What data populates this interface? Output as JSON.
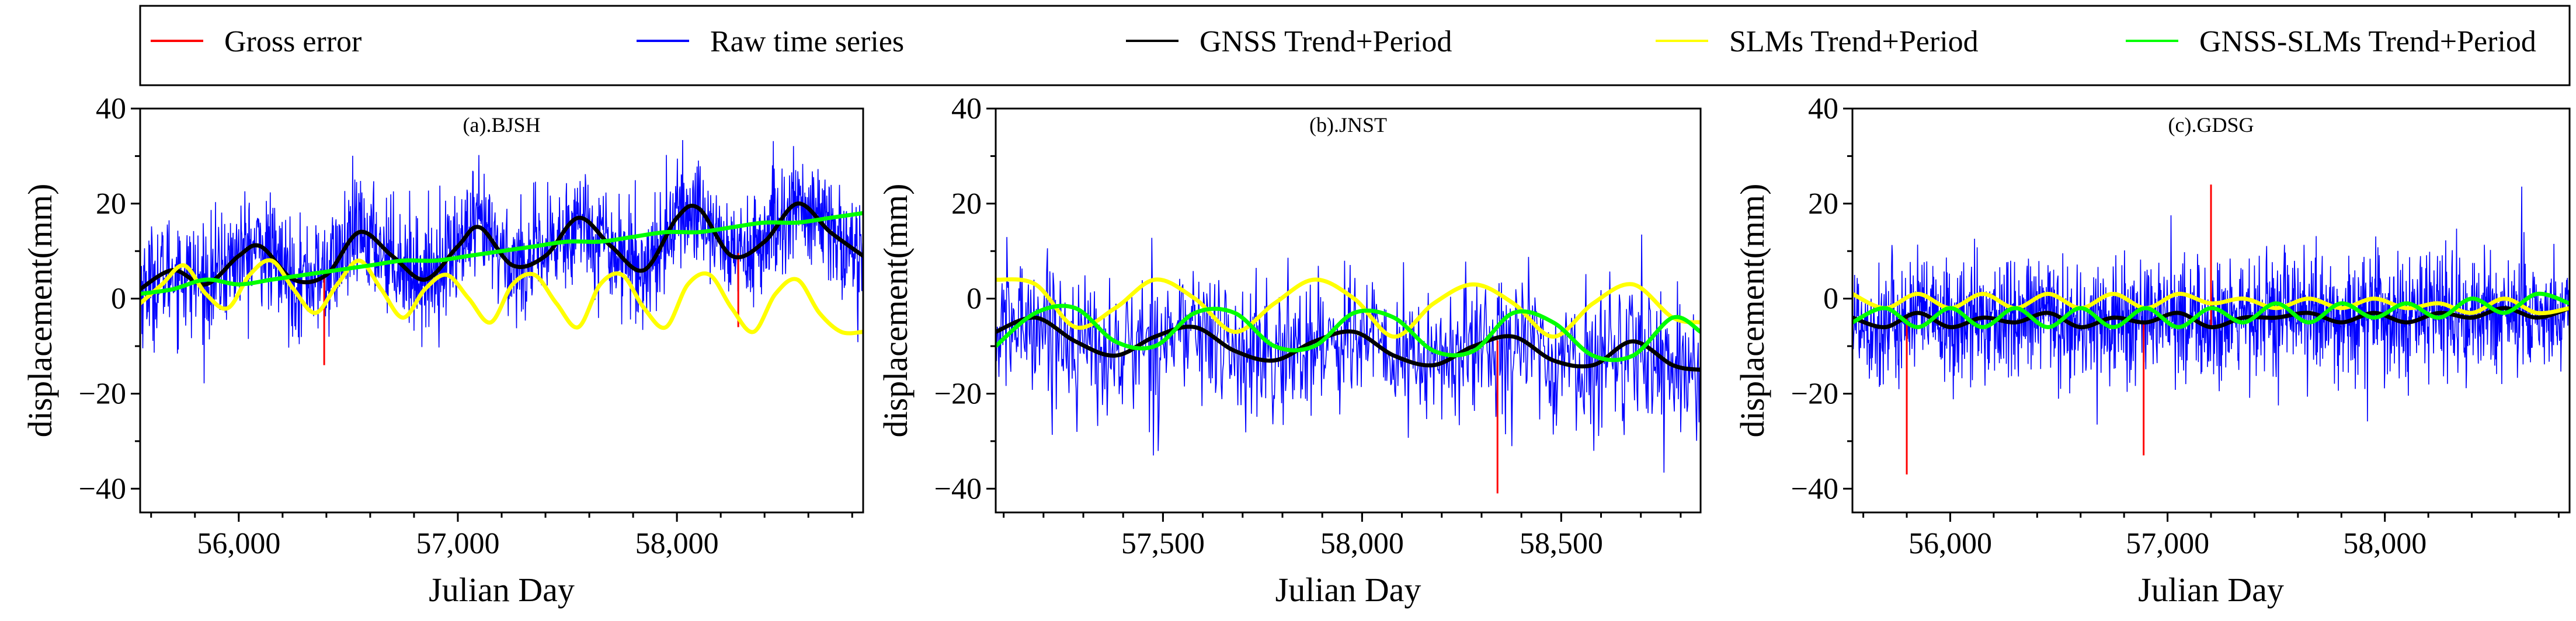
{
  "legend": {
    "items": [
      {
        "key": "gross",
        "label": "Gross error",
        "color": "#ff0000"
      },
      {
        "key": "raw",
        "label": "Raw time series",
        "color": "#0000ff"
      },
      {
        "key": "gnss",
        "label": "GNSS Trend+Period",
        "color": "#000000"
      },
      {
        "key": "slm",
        "label": "SLMs Trend+Period",
        "color": "#ffff00"
      },
      {
        "key": "diff",
        "label": "GNSS-SLMs Trend+Period",
        "color": "#00ff00"
      }
    ]
  },
  "chart_data": [
    {
      "type": "line",
      "title": "(a).BJSH",
      "xlabel": "Julian Day",
      "ylabel": "displacement(mm)",
      "xlim": [
        55550,
        58850
      ],
      "ylim": [
        -45,
        40
      ],
      "xticks": [
        56000,
        57000,
        58000
      ],
      "xtick_labels": [
        "56,000",
        "57,000",
        "58,000"
      ],
      "yticks": [
        -40,
        -20,
        0,
        20,
        40
      ],
      "ytick_labels": [
        "−40",
        "−20",
        "0",
        "20",
        "40"
      ],
      "series": [
        {
          "name": "GNSS Trend+Period",
          "x": [
            55550,
            55700,
            55850,
            56000,
            56100,
            56250,
            56400,
            56550,
            56700,
            56850,
            57000,
            57100,
            57250,
            57400,
            57550,
            57700,
            57850,
            58000,
            58100,
            58250,
            58400,
            58550,
            58700,
            58850
          ],
          "values": [
            2,
            6,
            3,
            9,
            11,
            4,
            5,
            14,
            9,
            4,
            11,
            15,
            7,
            9,
            17,
            11,
            6,
            17,
            19,
            9,
            12,
            20,
            14,
            9
          ]
        },
        {
          "name": "SLMs Trend+Period",
          "x": [
            55550,
            55650,
            55750,
            55850,
            55950,
            56050,
            56150,
            56250,
            56350,
            56450,
            56550,
            56650,
            56750,
            56850,
            56950,
            57050,
            57150,
            57250,
            57350,
            57450,
            57550,
            57650,
            57750,
            57850,
            57950,
            58050,
            58150,
            58250,
            58350,
            58450,
            58550,
            58650,
            58750,
            58850
          ],
          "values": [
            -1,
            3,
            7,
            1,
            -2,
            5,
            8,
            2,
            -3,
            3,
            8,
            2,
            -4,
            2,
            5,
            0,
            -5,
            3,
            5,
            -1,
            -6,
            3,
            5,
            -2,
            -6,
            3,
            5,
            -2,
            -7,
            1,
            4,
            -3,
            -7,
            -7
          ]
        },
        {
          "name": "GNSS-SLMs Trend+Period",
          "x": [
            55550,
            55700,
            55850,
            56000,
            56150,
            56300,
            56450,
            56600,
            56750,
            56900,
            57050,
            57200,
            57350,
            57500,
            57650,
            57800,
            57950,
            58100,
            58250,
            58400,
            58550,
            58700,
            58850
          ],
          "values": [
            1,
            2,
            4,
            3,
            4,
            5,
            6,
            7,
            8,
            8,
            9,
            10,
            11,
            12,
            12,
            13,
            14,
            14,
            15,
            16,
            16,
            17,
            18
          ]
        },
        {
          "name": "Gross error",
          "x": [
            56390,
            58280
          ],
          "values": [
            -14,
            -6
          ]
        }
      ]
    },
    {
      "type": "line",
      "title": "(b).JNST",
      "xlabel": "Julian Day",
      "ylabel": "displacement(mm)",
      "xlim": [
        57080,
        58850
      ],
      "ylim": [
        -45,
        40
      ],
      "xticks": [
        57500,
        58000,
        58500
      ],
      "xtick_labels": [
        "57,500",
        "58,000",
        "58,500"
      ],
      "yticks": [
        -40,
        -20,
        0,
        20,
        40
      ],
      "ytick_labels": [
        "−40",
        "−20",
        "0",
        "20",
        "40"
      ],
      "series": [
        {
          "name": "GNSS Trend+Period",
          "x": [
            57080,
            57180,
            57280,
            57380,
            57480,
            57580,
            57680,
            57780,
            57880,
            57980,
            58080,
            58180,
            58280,
            58380,
            58480,
            58580,
            58680,
            58780,
            58850
          ],
          "values": [
            -7,
            -4,
            -9,
            -12,
            -8,
            -6,
            -11,
            -13,
            -9,
            -7,
            -12,
            -14,
            -10,
            -8,
            -13,
            -14,
            -9,
            -14,
            -15
          ]
        },
        {
          "name": "SLMs Trend+Period",
          "x": [
            57080,
            57180,
            57280,
            57380,
            57480,
            57580,
            57680,
            57780,
            57880,
            57980,
            58080,
            58180,
            58280,
            58380,
            58480,
            58580,
            58680,
            58780,
            58850
          ],
          "values": [
            4,
            3,
            -6,
            -2,
            4,
            0,
            -7,
            -1,
            4,
            0,
            -8,
            -1,
            3,
            -1,
            -8,
            -1,
            3,
            -4,
            -5
          ]
        },
        {
          "name": "GNSS-SLMs Trend+Period",
          "x": [
            57080,
            57180,
            57280,
            57380,
            57480,
            57580,
            57680,
            57780,
            57880,
            57980,
            58080,
            58180,
            58280,
            58380,
            58480,
            58580,
            58680,
            58780,
            58850
          ],
          "values": [
            -10,
            -3,
            -2,
            -9,
            -10,
            -3,
            -3,
            -10,
            -10,
            -3,
            -4,
            -11,
            -11,
            -3,
            -5,
            -12,
            -12,
            -4,
            -7
          ]
        },
        {
          "name": "Gross error",
          "x": [
            58340
          ],
          "values": [
            -41
          ]
        }
      ]
    },
    {
      "type": "line",
      "title": "(c).GDSG",
      "xlabel": "Julian Day",
      "ylabel": "displacement(mm)",
      "xlim": [
        55550,
        58850
      ],
      "ylim": [
        -45,
        40
      ],
      "xticks": [
        56000,
        57000,
        58000
      ],
      "xtick_labels": [
        "56,000",
        "57,000",
        "58,000"
      ],
      "yticks": [
        -40,
        -20,
        0,
        20,
        40
      ],
      "ytick_labels": [
        "−40",
        "−20",
        "0",
        "20",
        "40"
      ],
      "series": [
        {
          "name": "GNSS Trend+Period",
          "x": [
            55550,
            55700,
            55850,
            56000,
            56150,
            56300,
            56450,
            56600,
            56750,
            56900,
            57050,
            57200,
            57350,
            57500,
            57650,
            57800,
            57950,
            58100,
            58250,
            58400,
            58550,
            58700,
            58850
          ],
          "values": [
            -4,
            -6,
            -3,
            -6,
            -4,
            -5,
            -3,
            -6,
            -4,
            -5,
            -3,
            -6,
            -4,
            -4,
            -3,
            -5,
            -3,
            -5,
            -3,
            -4,
            -2,
            -4,
            -2
          ]
        },
        {
          "name": "SLMs Trend+Period",
          "x": [
            55550,
            55700,
            55850,
            56000,
            56150,
            56300,
            56450,
            56600,
            56750,
            56900,
            57050,
            57200,
            57350,
            57500,
            57650,
            57800,
            57950,
            58100,
            58250,
            58400,
            58550,
            58700,
            58850
          ],
          "values": [
            1,
            -2,
            1,
            -2,
            1,
            -2,
            1,
            -2,
            1,
            -2,
            1,
            -1,
            0,
            -2,
            0,
            -2,
            0,
            -2,
            -1,
            -3,
            0,
            -3,
            -2
          ]
        },
        {
          "name": "GNSS-SLMs Trend+Period",
          "x": [
            55550,
            55700,
            55850,
            56000,
            56150,
            56300,
            56450,
            56600,
            56750,
            56900,
            57050,
            57200,
            57350,
            57500,
            57650,
            57800,
            57950,
            58100,
            58250,
            58400,
            58550,
            58700,
            58850
          ],
          "values": [
            -5,
            -2,
            -6,
            -2,
            -6,
            -2,
            -6,
            -2,
            -6,
            -2,
            -6,
            -2,
            -5,
            -1,
            -5,
            -1,
            -4,
            -1,
            -4,
            0,
            -3,
            1,
            -1
          ]
        },
        {
          "name": "Gross error",
          "x": [
            55800,
            56890,
            57200
          ],
          "values": [
            -37,
            -33,
            24
          ]
        }
      ]
    }
  ]
}
